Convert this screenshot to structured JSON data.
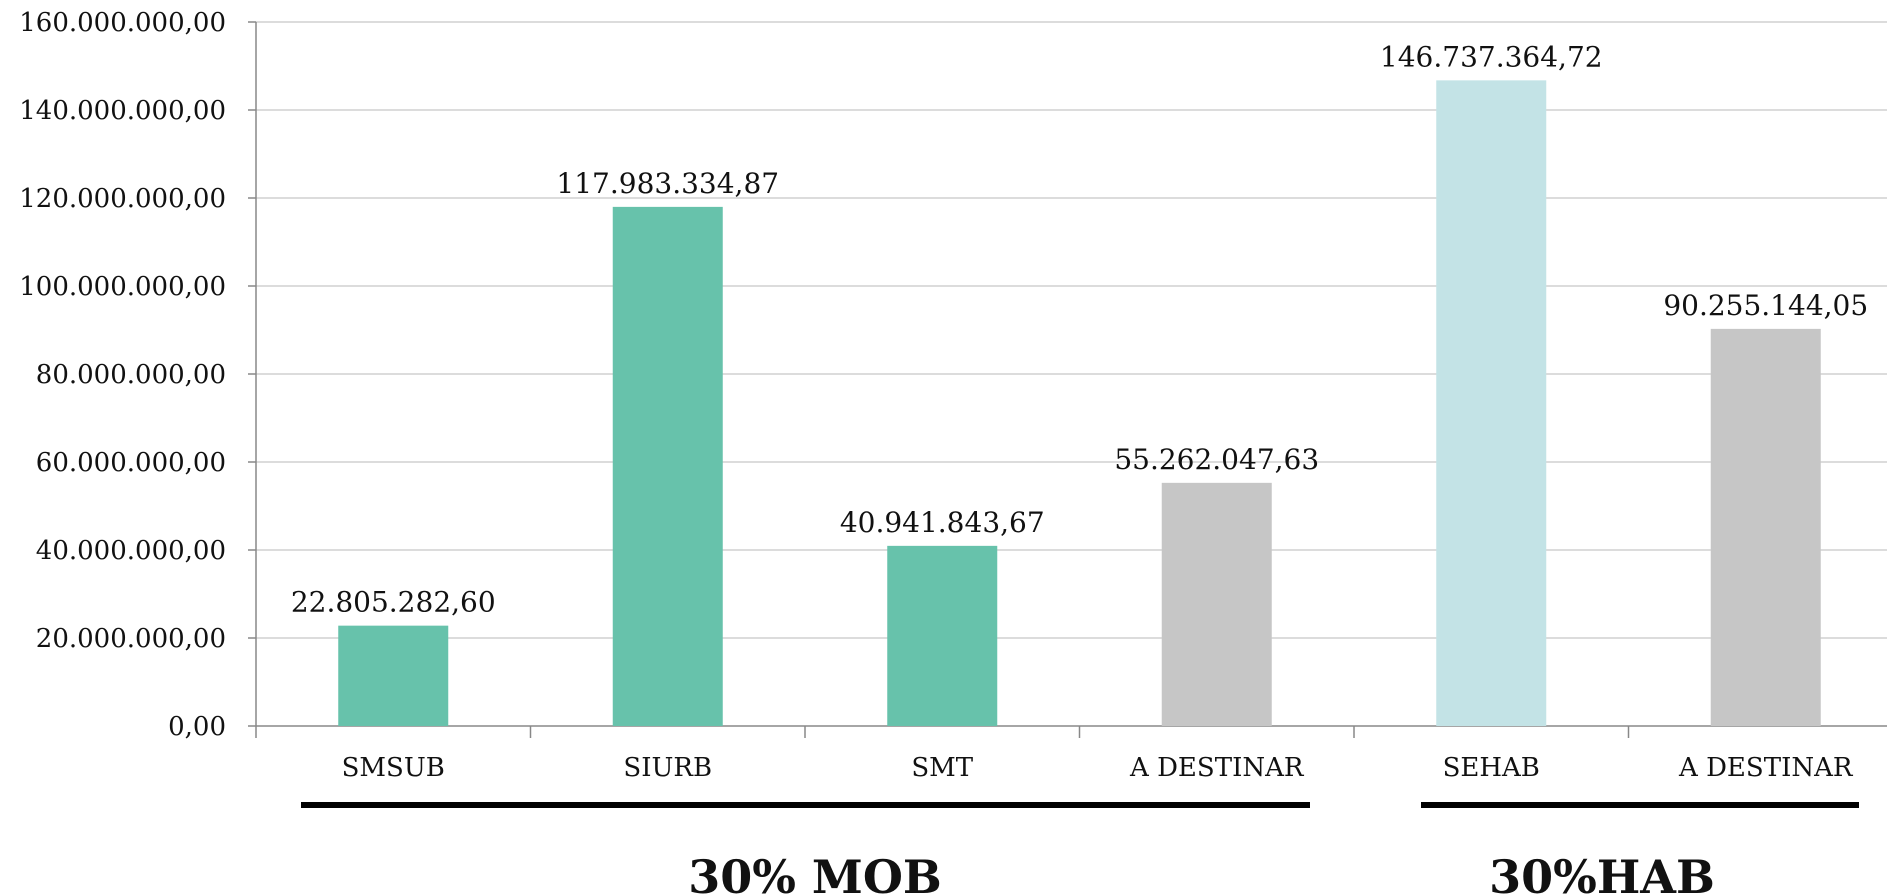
{
  "chart_data": {
    "type": "bar",
    "categories": [
      "SMSUB",
      "SIURB",
      "SMT",
      "A DESTINAR",
      "SEHAB",
      "A DESTINAR"
    ],
    "values": [
      22805282.6,
      117983334.87,
      40941843.67,
      55262047.63,
      146737364.72,
      90255144.05
    ],
    "data_labels": [
      "22.805.282,60",
      "117.983.334,87",
      "40.941.843,67",
      "55.262.047,63",
      "146.737.364,72",
      "90.255.144,05"
    ],
    "ylim": [
      0,
      160000000
    ],
    "yticks": [
      "0,00",
      "20.000.000,00",
      "40.000.000,00",
      "60.000.000,00",
      "80.000.000,00",
      "100.000.000,00",
      "120.000.000,00",
      "140.000.000,00",
      "160.000.000,00"
    ],
    "ytick_values": [
      0,
      20000000,
      40000000,
      60000000,
      80000000,
      100000000,
      120000000,
      140000000,
      160000000
    ],
    "grid": true,
    "colors": [
      "#67c2ab",
      "#67c2ab",
      "#67c2ab",
      "#c6c6c6",
      "#c3e3e6",
      "#c6c6c6"
    ],
    "groups": [
      {
        "label": "30% MOB",
        "categories": [
          0,
          1,
          2,
          3
        ]
      },
      {
        "label": "30%HAB",
        "categories": [
          4,
          5
        ]
      }
    ]
  }
}
